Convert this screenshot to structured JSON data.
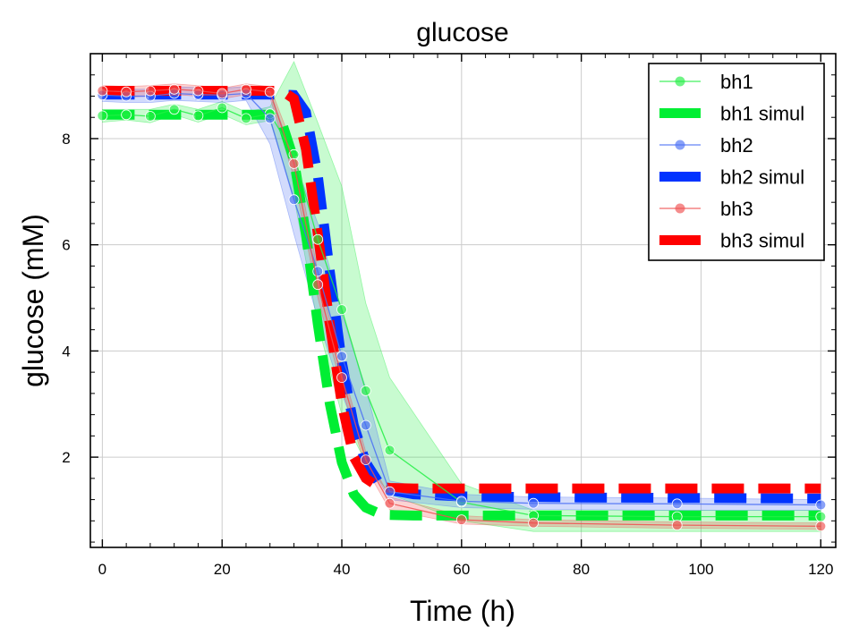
{
  "chart_data": {
    "type": "line",
    "title": "glucose",
    "xlabel": "Time (h)",
    "ylabel": "glucose (mM)",
    "xlim": [
      -2,
      122.5
    ],
    "ylim": [
      0.3,
      9.6
    ],
    "xticks": [
      0,
      20,
      40,
      60,
      80,
      100,
      120
    ],
    "yticks": [
      2,
      4,
      6,
      8
    ],
    "xtick_labels": [
      "0",
      "20",
      "40",
      "60",
      "80",
      "100",
      "120"
    ],
    "ytick_labels": [
      "2",
      "4",
      "6",
      "8"
    ],
    "grid": true,
    "legend_position": "top-right",
    "series": [
      {
        "name": "bh1",
        "kind": "measured",
        "color": "#22ee44",
        "x": [
          0,
          4,
          8,
          12,
          16,
          20,
          24,
          28,
          32,
          36,
          40,
          44,
          48,
          60,
          72,
          96,
          120
        ],
        "y": [
          8.43,
          8.45,
          8.42,
          8.55,
          8.43,
          8.58,
          8.38,
          8.47,
          7.7,
          6.1,
          4.78,
          3.25,
          2.13,
          1.15,
          0.9,
          0.88,
          0.88
        ],
        "band_upper": [
          8.55,
          8.55,
          8.55,
          8.65,
          8.55,
          8.7,
          8.5,
          8.6,
          9.45,
          8.3,
          7.1,
          4.9,
          3.5,
          1.5,
          1.0,
          1.0,
          1.0
        ],
        "band_lower": [
          8.31,
          8.35,
          8.3,
          8.45,
          8.31,
          8.46,
          8.26,
          8.34,
          6.9,
          4.5,
          2.8,
          1.9,
          1.3,
          0.8,
          0.6,
          0.6,
          0.6
        ]
      },
      {
        "name": "bh1 simul",
        "kind": "simulated",
        "color": "#00ee33",
        "x": [
          0,
          10,
          20,
          28,
          30,
          32,
          34,
          36,
          38,
          40,
          42,
          44,
          46,
          48,
          52,
          60,
          80,
          100,
          120
        ],
        "y": [
          8.45,
          8.45,
          8.45,
          8.45,
          8.3,
          7.6,
          6.2,
          4.5,
          3.0,
          1.9,
          1.3,
          1.05,
          0.95,
          0.91,
          0.9,
          0.9,
          0.9,
          0.9,
          0.9
        ]
      },
      {
        "name": "bh2",
        "kind": "measured",
        "color": "#4a6ef5",
        "x": [
          0,
          4,
          8,
          12,
          16,
          20,
          24,
          28,
          32,
          36,
          40,
          44,
          48,
          60,
          72,
          96,
          120
        ],
        "y": [
          8.82,
          8.8,
          8.8,
          8.85,
          8.83,
          8.82,
          8.85,
          8.38,
          6.85,
          5.5,
          3.9,
          2.6,
          1.35,
          1.17,
          1.13,
          1.12,
          1.1
        ],
        "band_upper": [
          8.95,
          8.93,
          8.93,
          8.98,
          8.96,
          8.95,
          8.98,
          8.9,
          7.6,
          6.4,
          4.7,
          3.3,
          1.55,
          1.3,
          1.25,
          1.23,
          1.2
        ],
        "band_lower": [
          8.7,
          8.68,
          8.68,
          8.72,
          8.7,
          8.68,
          8.72,
          7.9,
          6.2,
          4.6,
          3.2,
          2.0,
          1.2,
          1.05,
          1.02,
          1.0,
          1.0
        ]
      },
      {
        "name": "bh2 simul",
        "kind": "simulated",
        "color": "#0033ff",
        "x": [
          0,
          10,
          20,
          30,
          32,
          34,
          36,
          38,
          40,
          42,
          44,
          46,
          48,
          52,
          60,
          80,
          100,
          120
        ],
        "y": [
          8.83,
          8.83,
          8.83,
          8.83,
          8.82,
          8.5,
          7.3,
          5.5,
          3.8,
          2.6,
          1.9,
          1.55,
          1.38,
          1.3,
          1.26,
          1.24,
          1.23,
          1.22
        ]
      },
      {
        "name": "bh3",
        "kind": "measured",
        "color": "#f05050",
        "x": [
          0,
          4,
          8,
          12,
          16,
          20,
          24,
          28,
          32,
          36,
          40,
          44,
          48,
          60,
          72,
          96,
          120
        ],
        "y": [
          8.9,
          8.88,
          8.9,
          8.93,
          8.9,
          8.85,
          8.93,
          8.88,
          7.53,
          5.25,
          3.5,
          1.95,
          1.13,
          0.82,
          0.76,
          0.72,
          0.7
        ],
        "band_upper": [
          9.0,
          8.98,
          9.0,
          9.03,
          9.0,
          8.95,
          9.03,
          8.98,
          7.8,
          5.5,
          3.7,
          2.1,
          1.25,
          0.9,
          0.82,
          0.78,
          0.76
        ],
        "band_lower": [
          8.8,
          8.78,
          8.8,
          8.83,
          8.8,
          8.75,
          8.83,
          8.78,
          7.26,
          5.0,
          3.3,
          1.8,
          1.01,
          0.74,
          0.7,
          0.66,
          0.64
        ]
      },
      {
        "name": "bh3 simul",
        "kind": "simulated",
        "color": "#ff0000",
        "x": [
          0,
          10,
          20,
          30,
          32,
          34,
          36,
          38,
          40,
          42,
          44,
          46,
          48,
          52,
          60,
          80,
          100,
          120
        ],
        "y": [
          8.9,
          8.9,
          8.9,
          8.9,
          8.75,
          7.8,
          6.2,
          4.5,
          3.0,
          2.0,
          1.6,
          1.45,
          1.42,
          1.41,
          1.41,
          1.41,
          1.41,
          1.41
        ]
      }
    ]
  }
}
